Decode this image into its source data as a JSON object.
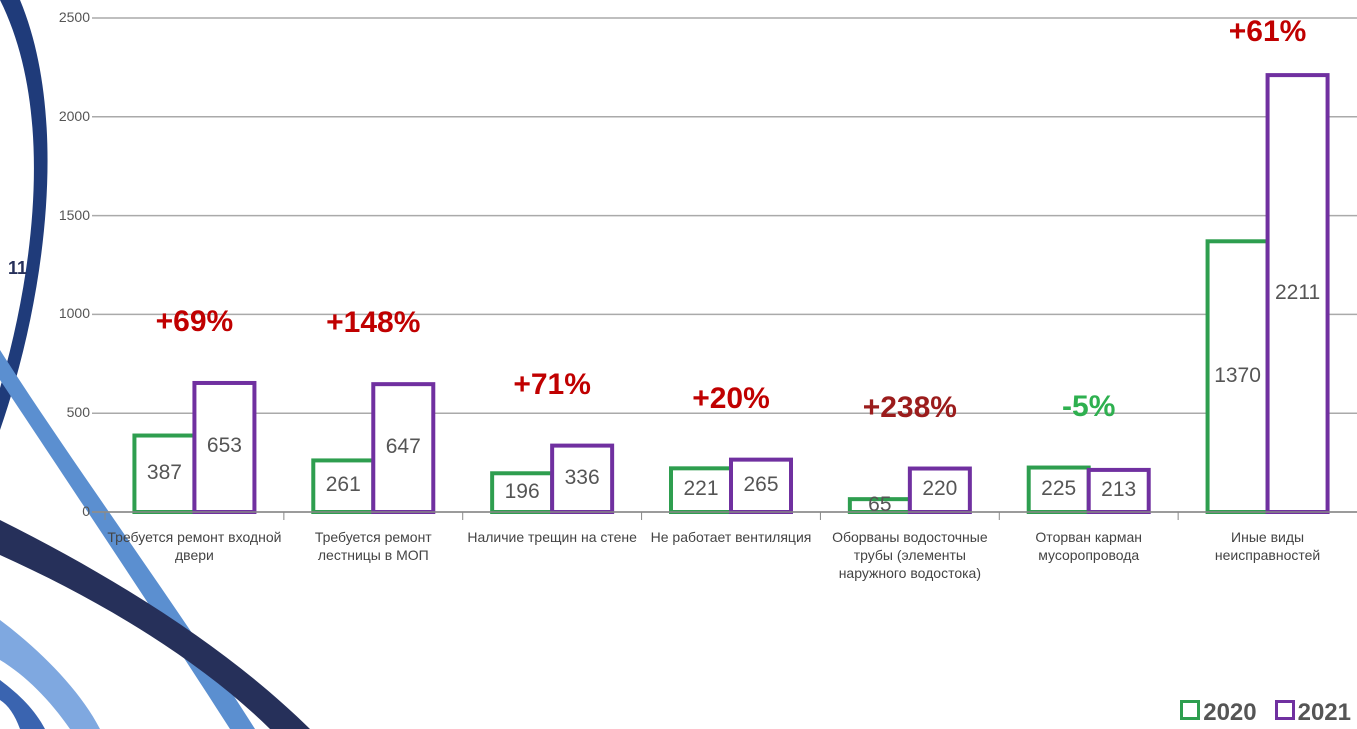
{
  "slide_number": "11",
  "chart_data": {
    "type": "bar",
    "categories": [
      "Требуется ремонт входной двери",
      "Требуется ремонт лестницы в МОП",
      "Наличие трещин на стене",
      "Не работает вентиляция",
      "Оборваны водосточные трубы (элементы наружного водостока)",
      "Оторван карман мусоропровода",
      "Иные виды неисправностей"
    ],
    "series": [
      {
        "name": "2020",
        "color": "#2e9e4f",
        "values": [
          387,
          261,
          196,
          221,
          65,
          225,
          1370
        ]
      },
      {
        "name": "2021",
        "color": "#7030a0",
        "values": [
          653,
          647,
          336,
          265,
          220,
          213,
          2211
        ]
      }
    ],
    "annotations": [
      {
        "text": "+69%",
        "color": "#c00000"
      },
      {
        "text": "+148%",
        "color": "#c00000"
      },
      {
        "text": "+71%",
        "color": "#c00000"
      },
      {
        "text": "+20%",
        "color": "#c00000"
      },
      {
        "text": "+238%",
        "color": "#9b1c1c"
      },
      {
        "text": "-5%",
        "color": "#2eb04f"
      },
      {
        "text": "+61%",
        "color": "#c00000"
      }
    ],
    "ylim": [
      0,
      2500
    ],
    "yticks": [
      0,
      500,
      1000,
      1500,
      2000,
      2500
    ],
    "grid": true,
    "legend": "bottom-right"
  }
}
